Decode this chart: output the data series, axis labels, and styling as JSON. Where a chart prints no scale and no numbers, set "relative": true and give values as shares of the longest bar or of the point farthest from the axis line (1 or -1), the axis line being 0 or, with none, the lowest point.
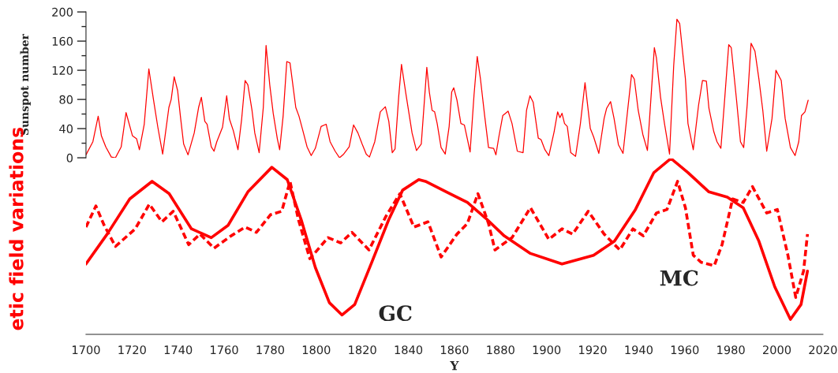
{
  "chart_data": [
    {
      "type": "line",
      "ylabel": "Sunspot number",
      "xlim": [
        1700,
        2020
      ],
      "ylim": [
        0,
        200
      ],
      "yticks": [
        0,
        40,
        80,
        120,
        160,
        200
      ],
      "tick_labels": "y",
      "grid": false,
      "legend": false,
      "series": [
        {
          "color": "#ff0000",
          "line_style": "solid",
          "x": [
            1700,
            1703,
            1705.3,
            1706.7,
            1708.6,
            1711,
            1712.8,
            1715.3,
            1717.4,
            1720.2,
            1722,
            1723.2,
            1725.3,
            1727.3,
            1729.3,
            1731.2,
            1733.3,
            1736,
            1737,
            1738.3,
            1739.8,
            1741,
            1742.4,
            1744.3,
            1747,
            1748.9,
            1750.1,
            1751.6,
            1752.6,
            1754.4,
            1755.6,
            1756.8,
            1759.3,
            1761.1,
            1762.3,
            1764,
            1766,
            1767.6,
            1769.1,
            1770.3,
            1772.1,
            1773.3,
            1775.2,
            1777,
            1778.2,
            1779.8,
            1781.3,
            1783.1,
            1784.1,
            1785.6,
            1787.2,
            1788.6,
            1791.1,
            1792.5,
            1794.1,
            1796,
            1797.8,
            1799.6,
            1802.1,
            1804.3,
            1806,
            1808.2,
            1810.1,
            1811.9,
            1814.3,
            1816.2,
            1818.1,
            1819.9,
            1821.7,
            1823.1,
            1825.4,
            1827.8,
            1830,
            1831.5,
            1833,
            1834.2,
            1835.8,
            1837,
            1838.9,
            1841.6,
            1843.5,
            1845.6,
            1848,
            1849.1,
            1850.3,
            1851.4,
            1852.5,
            1854.2,
            1856,
            1857.7,
            1858.8,
            1859.7,
            1861.1,
            1862.8,
            1864.3,
            1866.8,
            1868.5,
            1869.9,
            1871.3,
            1873.1,
            1874.8,
            1877,
            1878,
            1879.3,
            1881,
            1883.3,
            1885,
            1887.3,
            1889.8,
            1891.3,
            1892.8,
            1894.2,
            1896.4,
            1897.6,
            1899.3,
            1901,
            1903.3,
            1904.8,
            1905.8,
            1906.7,
            1907.8,
            1909,
            1910.5,
            1912.6,
            1914.7,
            1916.7,
            1919,
            1920.4,
            1922.7,
            1925,
            1926.1,
            1927.8,
            1929.3,
            1931.2,
            1933.2,
            1935.2,
            1936.9,
            1938.1,
            1939.8,
            1941.8,
            1943.8,
            1945.5,
            1946.8,
            1947.7,
            1949.5,
            1951.2,
            1953.4,
            1955.2,
            1956.6,
            1957.8,
            1960.3,
            1961.4,
            1963.7,
            1966,
            1967.7,
            1969.4,
            1970.5,
            1972.6,
            1974,
            1975.7,
            1977.4,
            1979.1,
            1980.2,
            1982.5,
            1984.2,
            1985.6,
            1987.1,
            1988.8,
            1990.5,
            1992.2,
            1993.9,
            1995.6,
            1997.9,
            1999.6,
            2001.9,
            2003.6,
            2005.9,
            2007.9,
            2009.5,
            2010.7,
            2012.2,
            2013.6
          ],
          "values": [
            4,
            22,
            57,
            30,
            15,
            1,
            0,
            15,
            62,
            30,
            26,
            11,
            46,
            122,
            80,
            42,
            5,
            69,
            80,
            111,
            92,
            57,
            19,
            4,
            34,
            69,
            83,
            50,
            46,
            15,
            9,
            22,
            42,
            85,
            53,
            37,
            11,
            53,
            106,
            100,
            65,
            34,
            7,
            69,
            154,
            100,
            61,
            26,
            11,
            57,
            132,
            130,
            69,
            57,
            38,
            15,
            3,
            13,
            43,
            46,
            22,
            9,
            0,
            5,
            15,
            45,
            34,
            19,
            5,
            1,
            22,
            63,
            70,
            50,
            7,
            12,
            84,
            128,
            88,
            34,
            10,
            19,
            124,
            90,
            65,
            63,
            47,
            14,
            5,
            43,
            90,
            96,
            79,
            47,
            45,
            8,
            86,
            139,
            108,
            58,
            14,
            13,
            4,
            29,
            58,
            64,
            47,
            9,
            7,
            65,
            85,
            76,
            27,
            25,
            11,
            3,
            36,
            63,
            55,
            61,
            47,
            43,
            7,
            2,
            47,
            103,
            40,
            29,
            6,
            54,
            68,
            77,
            54,
            18,
            6,
            65,
            114,
            108,
            65,
            32,
            10,
            90,
            151,
            137,
            83,
            47,
            5,
            126,
            190,
            184,
            108,
            47,
            11,
            72,
            106,
            105,
            68,
            36,
            22,
            13,
            83,
            155,
            151,
            79,
            22,
            14,
            72,
            157,
            146,
            108,
            65,
            9,
            54,
            120,
            106,
            54,
            14,
            3,
            22,
            58,
            63,
            79
          ]
        }
      ]
    },
    {
      "type": "line",
      "relative": true,
      "xlabel": "Y",
      "ylabel": "etic field variations",
      "xlim": [
        1700,
        2020
      ],
      "xticks": [
        1700,
        1720,
        1740,
        1760,
        1780,
        1800,
        1820,
        1840,
        1860,
        1880,
        1900,
        1920,
        1940,
        1960,
        1980,
        2000,
        2020
      ],
      "tick_labels": "x",
      "grid": false,
      "legend": false,
      "series": [
        {
          "color": "#ff0000",
          "line_style": "solid",
          "x": [
            1700,
            1709.2,
            1719,
            1728.7,
            1736.1,
            1745.8,
            1754.4,
            1761.7,
            1770.3,
            1780.7,
            1787.4,
            1793.5,
            1799.6,
            1805.7,
            1811.2,
            1816.7,
            1824.1,
            1831.4,
            1837.5,
            1844.5,
            1847.4,
            1856.5,
            1865.6,
            1873.6,
            1881.6,
            1893,
            1906.7,
            1920.4,
            1929.5,
            1938.6,
            1946.6,
            1954,
            1961.4,
            1970.5,
            1978.5,
            1985.4,
            1992.2,
            1999.1,
            2005.9,
            2010.5,
            2013.3
          ],
          "values": [
            0.4,
            0.57,
            0.77,
            0.87,
            0.8,
            0.6,
            0.55,
            0.62,
            0.81,
            0.95,
            0.88,
            0.65,
            0.38,
            0.18,
            0.11,
            0.17,
            0.41,
            0.65,
            0.82,
            0.88,
            0.87,
            0.81,
            0.75,
            0.66,
            0.56,
            0.46,
            0.4,
            0.45,
            0.53,
            0.71,
            0.92,
            1.0,
            0.92,
            0.81,
            0.78,
            0.72,
            0.53,
            0.27,
            0.085,
            0.17,
            0.36
          ]
        },
        {
          "color": "#ff0000",
          "line_style": "dashed",
          "x": [
            1700,
            1704.3,
            1707.9,
            1712.8,
            1721.4,
            1727.5,
            1733,
            1737.9,
            1744.6,
            1749.5,
            1755.6,
            1763,
            1769.1,
            1774,
            1780.1,
            1785,
            1788.6,
            1792.3,
            1797.2,
            1805.1,
            1810.6,
            1815.5,
            1822.9,
            1830.2,
            1836.3,
            1842.4,
            1848.5,
            1854.2,
            1861.1,
            1865.6,
            1870.2,
            1874.8,
            1877.6,
            1885,
            1893,
            1901,
            1906.7,
            1911.3,
            1918.1,
            1925,
            1931.8,
            1937.5,
            1942,
            1947.7,
            1952.3,
            1956.9,
            1960.3,
            1963.7,
            1967.1,
            1972.8,
            1976.2,
            1980.8,
            1985.4,
            1989.4,
            1995.6,
            2000.2,
            2004.8,
            2008.2,
            2011.6,
            2013.3
          ],
          "values": [
            0.61,
            0.73,
            0.62,
            0.5,
            0.6,
            0.74,
            0.64,
            0.7,
            0.51,
            0.57,
            0.49,
            0.56,
            0.61,
            0.58,
            0.68,
            0.7,
            0.87,
            0.65,
            0.43,
            0.55,
            0.52,
            0.58,
            0.48,
            0.67,
            0.8,
            0.61,
            0.64,
            0.44,
            0.57,
            0.63,
            0.8,
            0.63,
            0.48,
            0.55,
            0.72,
            0.54,
            0.6,
            0.57,
            0.7,
            0.57,
            0.48,
            0.6,
            0.56,
            0.69,
            0.71,
            0.87,
            0.72,
            0.45,
            0.41,
            0.39,
            0.51,
            0.77,
            0.75,
            0.84,
            0.69,
            0.71,
            0.45,
            0.21,
            0.36,
            0.57
          ]
        }
      ],
      "annotations": [
        "GC",
        "MC"
      ]
    }
  ]
}
